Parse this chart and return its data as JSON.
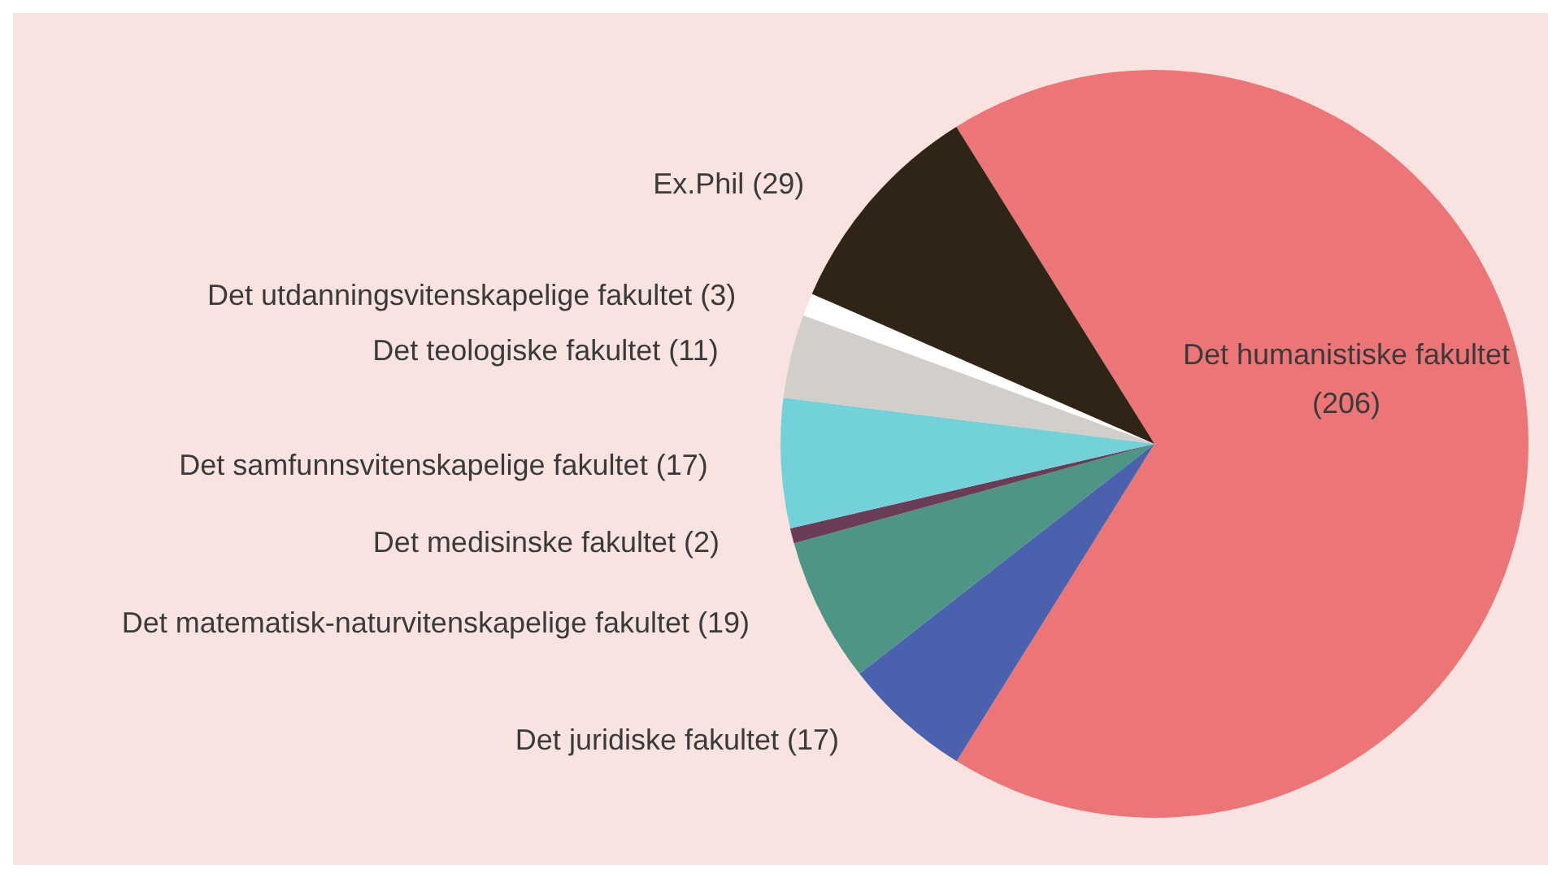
{
  "chart_data": {
    "type": "pie",
    "categories": [
      "Det humanistiske fakultet",
      "Det juridiske fakultet",
      "Det matematisk-naturvitenskapelige fakultet",
      "Det medisinske fakultet",
      "Det samfunnsvitenskapelige fakultet",
      "Det teologiske fakultet",
      "Det utdanningsvitenskapelige fakultet",
      "Ex.Phil"
    ],
    "values": [
      206,
      17,
      19,
      2,
      17,
      11,
      3,
      29
    ],
    "colors": [
      "#ec7677",
      "#4a62ad",
      "#4d9585",
      "#6a3c58",
      "#73d1da",
      "#d2cfca",
      "#ffffff",
      "#2f2416"
    ],
    "value_labels": [
      "(206)",
      "(17)",
      "(19)",
      "(2)",
      "(17)",
      "(11)",
      "(3)",
      "(29)"
    ],
    "legend": false
  }
}
